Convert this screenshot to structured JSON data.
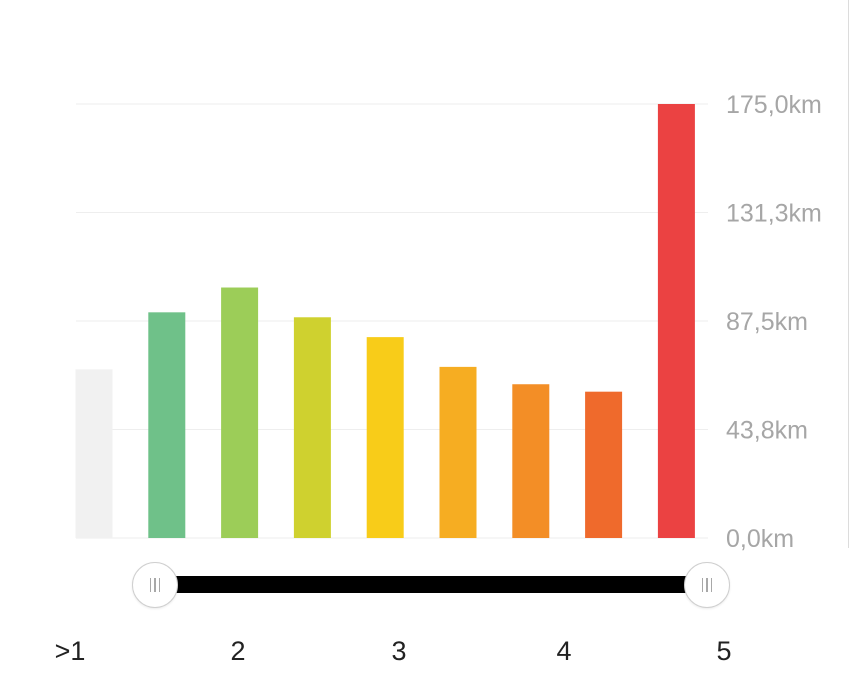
{
  "chart_data": {
    "type": "bar",
    "values": [
      68,
      91,
      101,
      89,
      81,
      69,
      62,
      59,
      175
    ],
    "colors": [
      "#f1f1f1",
      "#6fc189",
      "#9ccd58",
      "#cfd12f",
      "#f8cc19",
      "#f6ad22",
      "#f38e26",
      "#ef6a2c",
      "#eb4242"
    ],
    "ylim": [
      0,
      175
    ],
    "yticks": [
      "0,0km",
      "43,8km",
      "87,5km",
      "131,3km",
      "175,0km"
    ],
    "ytick_values": [
      0,
      43.75,
      87.5,
      131.25,
      175
    ],
    "grid": true
  },
  "slider": {
    "range_start": 1,
    "range_end": 5,
    "ticks": [
      ">1",
      "2",
      "3",
      "4",
      "5"
    ],
    "left_handle_icon": "grip-lines-icon",
    "right_handle_icon": "grip-lines-icon"
  }
}
